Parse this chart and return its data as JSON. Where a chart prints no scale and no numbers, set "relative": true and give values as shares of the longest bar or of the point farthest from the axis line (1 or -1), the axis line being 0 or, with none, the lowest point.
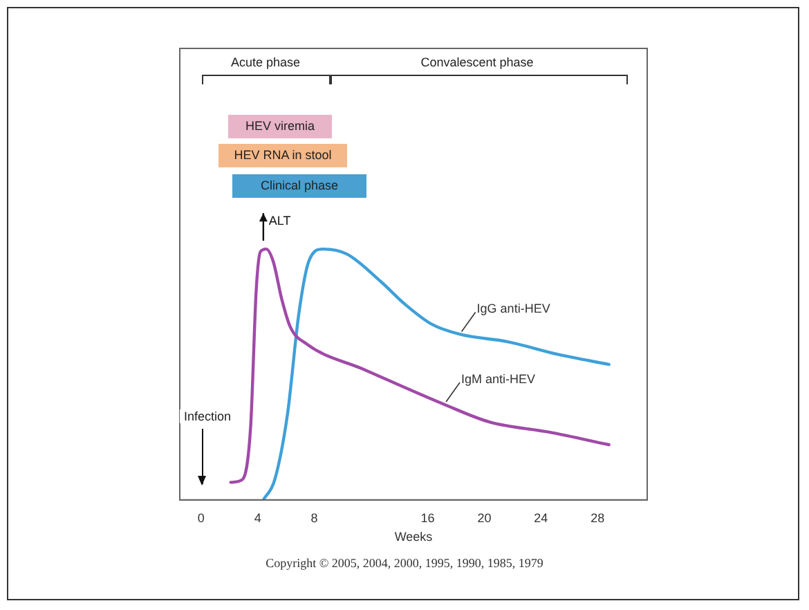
{
  "chart_data": {
    "type": "line",
    "relative": true,
    "xlabel": "Weeks",
    "xlim": [
      -1.5,
      31.5
    ],
    "xticks": [
      0,
      4,
      8,
      16,
      20,
      24,
      28
    ],
    "legend": false,
    "grid": false,
    "marker": "none",
    "line_style": "solid",
    "series": [
      {
        "name": "IgM anti-HEV",
        "color": "#a04aa8",
        "x": [
          2.1,
          2.9,
          3.5,
          3.9,
          4.2,
          4.6,
          5.1,
          5.7,
          6.3,
          7.5,
          11.5,
          17.2,
          20.4,
          24.6,
          28.8
        ],
        "values": [
          0.07,
          0.08,
          0.29,
          0.84,
          0.99,
          1,
          0.95,
          0.8,
          0.69,
          0.62,
          0.52,
          0.38,
          0.31,
          0.27,
          0.22
        ]
      },
      {
        "name": "IgG anti-HEV",
        "color": "#3fa0d8",
        "x": [
          4.4,
          5.2,
          6.1,
          6.9,
          7.6,
          8.6,
          10.3,
          12.7,
          14.4,
          16.3,
          18.3,
          21.7,
          25.2,
          28.8
        ],
        "values": [
          0,
          0.08,
          0.34,
          0.74,
          0.95,
          1,
          0.98,
          0.87,
          0.78,
          0.7,
          0.66,
          0.63,
          0.58,
          0.54
        ]
      }
    ],
    "annotations": [
      "Acute phase",
      "Convalescent phase",
      "HEV viremia",
      "HEV RNA in stool",
      "Clinical phase",
      {
        "text": "ALT",
        "x": 4.4,
        "y": 1
      },
      "Infection",
      "Copyright © 2005, 2004, 2000, 1995, 1990, 1985, 1979"
    ]
  }
}
